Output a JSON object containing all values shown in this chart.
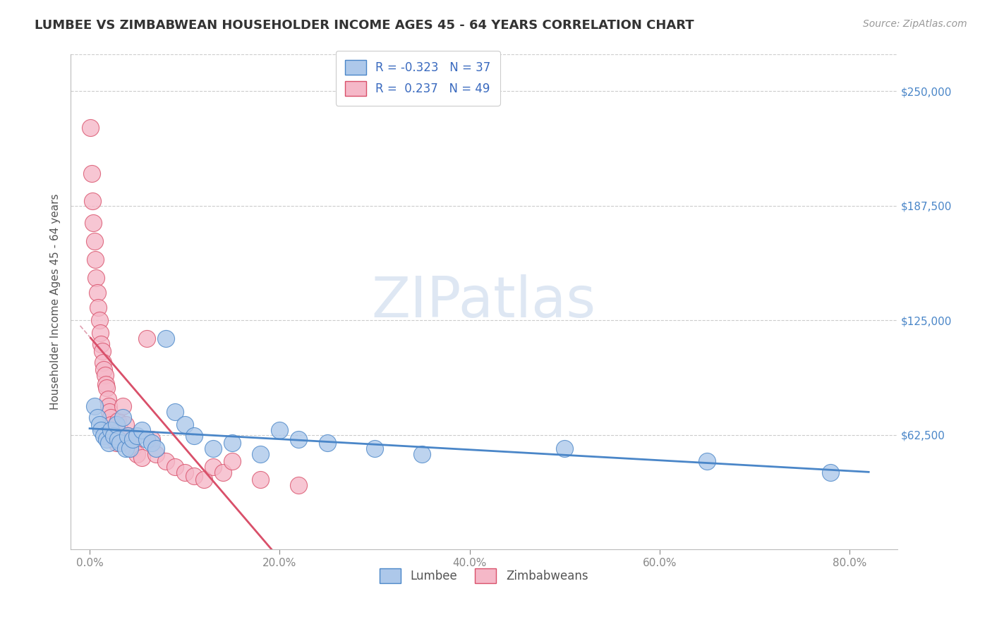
{
  "title": "LUMBEE VS ZIMBABWEAN HOUSEHOLDER INCOME AGES 45 - 64 YEARS CORRELATION CHART",
  "source": "Source: ZipAtlas.com",
  "xlabel_ticks": [
    "0.0%",
    "20.0%",
    "40.0%",
    "60.0%",
    "80.0%"
  ],
  "xlabel_vals": [
    0.0,
    0.2,
    0.4,
    0.6,
    0.8
  ],
  "ylabel": "Householder Income Ages 45 - 64 years",
  "ylabel_vals": [
    62500,
    125000,
    187500,
    250000
  ],
  "ylim_max": 270000,
  "xlim": [
    -0.02,
    0.85
  ],
  "legend_lumbee_R": "-0.323",
  "legend_lumbee_N": "37",
  "legend_zimbabwean_R": "0.237",
  "legend_zimbabwean_N": "49",
  "lumbee_color": "#adc8ea",
  "zimbabwean_color": "#f5b8c8",
  "lumbee_line_color": "#4a86c8",
  "zimbabwean_line_color": "#d9506a",
  "background_color": "#ffffff",
  "lumbee_x": [
    0.005,
    0.008,
    0.01,
    0.012,
    0.015,
    0.018,
    0.02,
    0.022,
    0.025,
    0.028,
    0.03,
    0.032,
    0.035,
    0.038,
    0.04,
    0.042,
    0.045,
    0.05,
    0.055,
    0.06,
    0.065,
    0.07,
    0.08,
    0.09,
    0.1,
    0.11,
    0.13,
    0.15,
    0.18,
    0.2,
    0.22,
    0.25,
    0.3,
    0.35,
    0.5,
    0.65,
    0.78
  ],
  "lumbee_y": [
    78000,
    72000,
    68000,
    65000,
    62000,
    60000,
    58000,
    65000,
    62000,
    68000,
    60000,
    58000,
    72000,
    55000,
    62000,
    55000,
    60000,
    62000,
    65000,
    60000,
    58000,
    55000,
    115000,
    75000,
    68000,
    62000,
    55000,
    58000,
    52000,
    65000,
    60000,
    58000,
    55000,
    52000,
    55000,
    48000,
    42000
  ],
  "zimbabwean_x": [
    0.001,
    0.002,
    0.003,
    0.004,
    0.005,
    0.006,
    0.007,
    0.008,
    0.009,
    0.01,
    0.011,
    0.012,
    0.013,
    0.014,
    0.015,
    0.016,
    0.017,
    0.018,
    0.019,
    0.02,
    0.021,
    0.022,
    0.023,
    0.024,
    0.025,
    0.026,
    0.028,
    0.03,
    0.032,
    0.035,
    0.038,
    0.04,
    0.042,
    0.045,
    0.05,
    0.055,
    0.06,
    0.065,
    0.07,
    0.08,
    0.09,
    0.1,
    0.11,
    0.12,
    0.13,
    0.14,
    0.15,
    0.18,
    0.22
  ],
  "zimbabwean_y": [
    230000,
    205000,
    190000,
    178000,
    168000,
    158000,
    148000,
    140000,
    132000,
    125000,
    118000,
    112000,
    108000,
    102000,
    98000,
    95000,
    90000,
    88000,
    82000,
    78000,
    75000,
    72000,
    68000,
    65000,
    63000,
    60000,
    58000,
    70000,
    65000,
    78000,
    68000,
    62000,
    58000,
    55000,
    52000,
    50000,
    115000,
    60000,
    52000,
    48000,
    45000,
    42000,
    40000,
    38000,
    45000,
    42000,
    48000,
    38000,
    35000
  ]
}
